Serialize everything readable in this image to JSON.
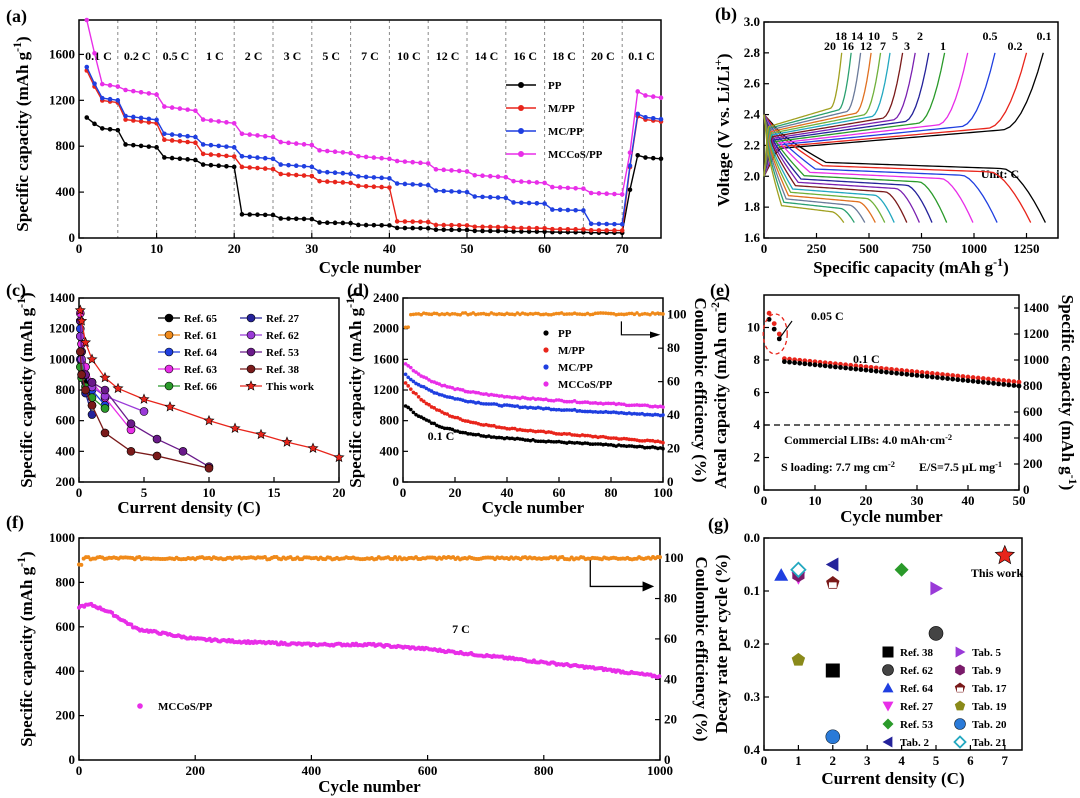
{
  "chart_data": [
    {
      "panel": "(a)",
      "type": "scatter",
      "xlabel": "Cycle number",
      "ylabel": "Specific capacity (mAh g⁻¹)",
      "xlim": [
        0,
        75
      ],
      "ylim": [
        0,
        1900
      ],
      "xticks": [
        0,
        10,
        20,
        30,
        40,
        50,
        60,
        70
      ],
      "yticks": [
        0,
        400,
        800,
        1200,
        1600
      ],
      "rate_labels": [
        "0.1 C",
        "0.2 C",
        "0.5 C",
        "1 C",
        "2 C",
        "3 C",
        "5 C",
        "7 C",
        "10 C",
        "12 C",
        "14 C",
        "16 C",
        "18 C",
        "20 C",
        "0.1 C"
      ],
      "segment_dividers": [
        5,
        10,
        15,
        20,
        25,
        30,
        35,
        40,
        45,
        50,
        55,
        60,
        65,
        70
      ],
      "legend": [
        "PP",
        "M/PP",
        "MC/PP",
        "MCCoS/PP"
      ],
      "series": [
        {
          "name": "PP",
          "color": "#000000",
          "start": 1050,
          "levels": [
            940,
            790,
            680,
            620,
            200,
            165,
            130,
            110,
            85,
            70,
            60,
            55,
            50,
            45,
            700
          ]
        },
        {
          "name": "M/PP",
          "color": "#e8251b",
          "start": 1460,
          "levels": [
            1180,
            1000,
            830,
            710,
            600,
            540,
            480,
            440,
            140,
            110,
            95,
            85,
            75,
            65,
            1030
          ]
        },
        {
          "name": "MC/PP",
          "color": "#1f3fe0",
          "start": 1490,
          "levels": [
            1200,
            1030,
            880,
            790,
            690,
            620,
            560,
            520,
            460,
            400,
            350,
            300,
            240,
            120,
            1050
          ]
        },
        {
          "name": "MCCoS/PP",
          "color": "#e82ee8",
          "start": 1900,
          "levels": [
            1320,
            1250,
            1110,
            1000,
            880,
            810,
            740,
            690,
            650,
            580,
            530,
            480,
            430,
            380,
            1240
          ]
        }
      ]
    },
    {
      "panel": "(b)",
      "type": "line",
      "xlabel": "Specific capacity (mAh g⁻¹)",
      "ylabel": "Voltage (V vs. Li/Li⁺)",
      "xlim": [
        0,
        1400
      ],
      "ylim": [
        1.6,
        3.0
      ],
      "xticks": [
        0,
        250,
        500,
        750,
        1000,
        1250
      ],
      "yticks": [
        1.6,
        1.8,
        2.0,
        2.2,
        2.4,
        2.6,
        2.8,
        3.0
      ],
      "annotation": "Unit: C",
      "curve_labels": [
        "0.1",
        "0.2",
        "0.5",
        "1",
        "2",
        "3",
        "5",
        "7",
        "10",
        "12",
        "14",
        "16",
        "18",
        "20"
      ],
      "discharge_capacity": [
        1340,
        1270,
        1110,
        995,
        870,
        800,
        740,
        680,
        620,
        575,
        530,
        480,
        430,
        380
      ],
      "charge_capacity": [
        1330,
        1250,
        1100,
        970,
        860,
        785,
        720,
        660,
        600,
        555,
        510,
        460,
        415,
        370
      ],
      "colors": [
        "#000000",
        "#e8251b",
        "#1f3fe0",
        "#e82ee8",
        "#2a9a2a",
        "#24229a",
        "#7a20b0",
        "#7a1a1a",
        "#23a8c0",
        "#6fb03a",
        "#e07020",
        "#6a7a9a",
        "#2aa070",
        "#a0a020"
      ]
    },
    {
      "panel": "(c)",
      "type": "line",
      "xlabel": "Current density (C)",
      "ylabel": "Specific capacity (mAh g⁻¹)",
      "xlim": [
        0,
        20
      ],
      "ylim": [
        200,
        1400
      ],
      "xticks": [
        0,
        5,
        10,
        15,
        20
      ],
      "yticks": [
        200,
        400,
        600,
        800,
        1000,
        1200,
        1400
      ],
      "series": [
        {
          "name": "Ref. 65",
          "color": "#000000",
          "x": [
            0.1,
            0.2,
            0.5,
            1
          ],
          "y": [
            1150,
            980,
            850,
            700
          ]
        },
        {
          "name": "Ref. 61",
          "color": "#f08a1a",
          "x": [
            0.1,
            0.2,
            0.5,
            1
          ],
          "y": [
            1250,
            1100,
            950,
            800
          ]
        },
        {
          "name": "Ref. 64",
          "color": "#1f3fe0",
          "x": [
            0.1,
            0.2,
            0.5,
            1,
            2
          ],
          "y": [
            1200,
            1050,
            900,
            800,
            700
          ]
        },
        {
          "name": "Ref. 63",
          "color": "#e82ee8",
          "x": [
            0.1,
            0.2,
            0.5,
            1,
            2,
            4
          ],
          "y": [
            1300,
            1100,
            950,
            850,
            750,
            540
          ]
        },
        {
          "name": "Ref. 66",
          "color": "#2a9a2a",
          "x": [
            0.1,
            0.2,
            0.5,
            1,
            2
          ],
          "y": [
            950,
            880,
            820,
            750,
            680
          ]
        },
        {
          "name": "Ref. 27",
          "color": "#24229a",
          "x": [
            0.1,
            0.2,
            0.5,
            1
          ],
          "y": [
            1000,
            900,
            780,
            640
          ]
        },
        {
          "name": "Ref. 62",
          "color": "#9a3ad8",
          "x": [
            0.1,
            0.2,
            0.5,
            1,
            2,
            5
          ],
          "y": [
            1150,
            1000,
            900,
            820,
            760,
            660
          ]
        },
        {
          "name": "Ref. 53",
          "color": "#6a1a8a",
          "x": [
            0.1,
            0.2,
            0.5,
            1,
            2,
            4,
            6,
            8,
            10
          ],
          "y": [
            1250,
            1050,
            900,
            850,
            800,
            580,
            480,
            400,
            300
          ]
        },
        {
          "name": "Ref. 38",
          "color": "#7a1a1a",
          "x": [
            0.1,
            0.2,
            0.5,
            1,
            2,
            4,
            6,
            10
          ],
          "y": [
            1050,
            900,
            800,
            700,
            520,
            400,
            370,
            290
          ]
        },
        {
          "name": "This work",
          "color": "#e8251b",
          "x": [
            0.1,
            0.2,
            0.5,
            1,
            2,
            3,
            5,
            7,
            10,
            12,
            14,
            16,
            18,
            20
          ],
          "y": [
            1320,
            1250,
            1110,
            1000,
            880,
            810,
            740,
            690,
            600,
            550,
            510,
            460,
            420,
            360
          ]
        }
      ]
    },
    {
      "panel": "(d)",
      "type": "scatter",
      "xlabel": "Cycle number",
      "ylabel": "Specific capacity (mAh g⁻¹)",
      "y2label": "Coulombic efficiency (%)",
      "xlim": [
        0,
        100
      ],
      "ylim": [
        0,
        2400
      ],
      "y2lim": [
        0,
        110
      ],
      "xticks": [
        0,
        20,
        40,
        60,
        80,
        100
      ],
      "yticks": [
        0,
        400,
        800,
        1200,
        1600,
        2000,
        2400
      ],
      "y2ticks": [
        0,
        20,
        40,
        60,
        80,
        100
      ],
      "annotation": "0.1 C",
      "legend": [
        "PP",
        "M/PP",
        "MC/PP",
        "MCCoS/PP"
      ],
      "series": [
        {
          "name": "PP",
          "color": "#000000",
          "start": 1000,
          "end": 440
        },
        {
          "name": "M/PP",
          "color": "#e8251b",
          "start": 1300,
          "end": 520
        },
        {
          "name": "MC/PP",
          "color": "#1f3fe0",
          "start": 1400,
          "end": 870
        },
        {
          "name": "MCCoS/PP",
          "color": "#e82ee8",
          "start": 1550,
          "end": 980
        }
      ],
      "efficiency": {
        "color": "#f08a1a",
        "value": 100.5
      }
    },
    {
      "panel": "(e)",
      "type": "scatter",
      "xlabel": "Cycle number",
      "ylabel": "Areal capacity (mAh cm⁻²)",
      "y2label": "Specific capacity (mAh g⁻¹)",
      "xlim": [
        0,
        50
      ],
      "ylim": [
        0,
        12
      ],
      "y2lim": [
        0,
        1500
      ],
      "xticks": [
        0,
        10,
        20,
        30,
        40,
        50
      ],
      "yticks": [
        0,
        2,
        4,
        6,
        8,
        10
      ],
      "y2ticks": [
        0,
        200,
        400,
        600,
        800,
        1000,
        1200,
        1400
      ],
      "annotations": [
        "0.05 C",
        "0.1 C",
        "Commercial LIBs: 4.0 mAh·cm⁻²",
        "S loading: 7.7 mg cm⁻²",
        "E/S=7.5 µL mg⁻¹"
      ],
      "reference_line": 4.0,
      "areal": {
        "color": "#000000",
        "start": 10.5,
        "after": 7.9,
        "end": 6.4
      },
      "specific": {
        "color": "#e8251b",
        "start": 1360,
        "after": 1010,
        "end": 830
      }
    },
    {
      "panel": "(f)",
      "type": "scatter",
      "xlabel": "Cycle number",
      "ylabel": "Specific capacity (mAh g⁻¹)",
      "y2label": "Coulombic efficiency (%)",
      "xlim": [
        0,
        1000
      ],
      "ylim": [
        0,
        1000
      ],
      "y2lim": [
        0,
        110
      ],
      "xticks": [
        0,
        200,
        400,
        600,
        800,
        1000
      ],
      "yticks": [
        0,
        200,
        400,
        600,
        800,
        1000
      ],
      "y2ticks": [
        0,
        20,
        40,
        60,
        80,
        100
      ],
      "annotation": "7 C",
      "legend": [
        "MCCoS/PP"
      ],
      "capacity": {
        "color": "#e82ee8",
        "x": [
          0,
          20,
          50,
          100,
          200,
          300,
          400,
          500,
          600,
          700,
          800,
          900,
          1000
        ],
        "y": [
          690,
          700,
          670,
          590,
          545,
          530,
          520,
          520,
          500,
          470,
          440,
          410,
          375
        ]
      },
      "efficiency": {
        "color": "#f08a1a",
        "value": 100
      }
    },
    {
      "panel": "(g)",
      "type": "scatter",
      "xlabel": "Current density (C)",
      "ylabel": "Decay rate per cycle (%)",
      "xlim": [
        0,
        7.5
      ],
      "ylim": [
        0.0,
        0.4
      ],
      "y_inverted": true,
      "xticks": [
        0,
        1,
        2,
        3,
        4,
        5,
        6,
        7
      ],
      "yticks": [
        0.0,
        0.1,
        0.2,
        0.3,
        0.4
      ],
      "points": [
        {
          "name": "Ref. 38",
          "marker": "square",
          "color": "#000000",
          "x": 2,
          "y": 0.25
        },
        {
          "name": "Ref. 62",
          "marker": "circle",
          "color": "#444444",
          "x": 5,
          "y": 0.18
        },
        {
          "name": "Ref. 64",
          "marker": "triangle-up",
          "color": "#1f3fe0",
          "x": 0.5,
          "y": 0.07
        },
        {
          "name": "Ref. 27",
          "marker": "triangle-down",
          "color": "#e82ee8",
          "x": 1,
          "y": 0.075
        },
        {
          "name": "Ref. 53",
          "marker": "diamond",
          "color": "#2a9a2a",
          "x": 4,
          "y": 0.06
        },
        {
          "name": "Tab. 2",
          "marker": "triangle-left",
          "color": "#24229a",
          "x": 2,
          "y": 0.05
        },
        {
          "name": "Tab. 5",
          "marker": "triangle-right",
          "color": "#9a3ad8",
          "x": 5,
          "y": 0.095
        },
        {
          "name": "Tab. 9",
          "marker": "hexagon",
          "color": "#7a1a6a",
          "x": 1,
          "y": 0.07
        },
        {
          "name": "Tab. 17",
          "marker": "pentagon-open",
          "color": "#7a1a1a",
          "x": 2,
          "y": 0.085
        },
        {
          "name": "Tab. 19",
          "marker": "pentagon",
          "color": "#8a8a1a",
          "x": 1,
          "y": 0.23
        },
        {
          "name": "Tab. 20",
          "marker": "sphere",
          "color": "#2a7ad8",
          "x": 2,
          "y": 0.375
        },
        {
          "name": "Tab. 21",
          "marker": "diamond-open",
          "color": "#23a8c0",
          "x": 1,
          "y": 0.06
        },
        {
          "name": "This work",
          "marker": "star",
          "color": "#e8251b",
          "x": 7,
          "y": 0.033
        }
      ]
    }
  ]
}
